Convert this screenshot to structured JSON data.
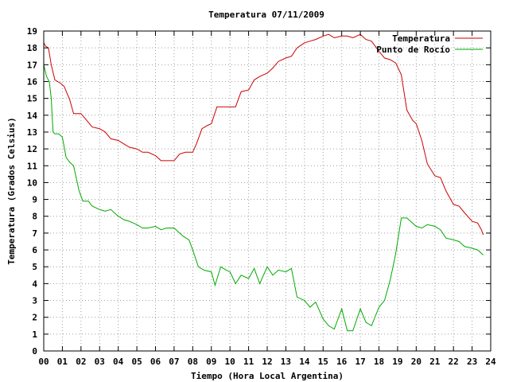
{
  "chart_data": {
    "type": "line",
    "title": "Temperatura 07/11/2009",
    "xlabel": "Tiempo (Hora Local Argentina)",
    "ylabel": "Temperatura (Grados Celsius)",
    "xlim": [
      0,
      24
    ],
    "ylim": [
      0,
      19
    ],
    "x_ticks": [
      "00",
      "01",
      "02",
      "03",
      "04",
      "05",
      "06",
      "07",
      "08",
      "09",
      "10",
      "11",
      "12",
      "13",
      "14",
      "15",
      "16",
      "17",
      "18",
      "19",
      "20",
      "21",
      "22",
      "23",
      "24"
    ],
    "y_ticks": [
      0,
      1,
      2,
      3,
      4,
      5,
      6,
      7,
      8,
      9,
      10,
      11,
      12,
      13,
      14,
      15,
      16,
      17,
      18,
      19
    ],
    "grid": true,
    "legend": "top-right",
    "series": [
      {
        "name": "Temperatura",
        "color": "#cc0000",
        "x": [
          0,
          0.1,
          0.25,
          0.4,
          0.6,
          0.9,
          1.1,
          1.4,
          1.6,
          2.0,
          2.3,
          2.6,
          3.0,
          3.3,
          3.6,
          4.0,
          4.3,
          4.6,
          5.0,
          5.3,
          5.6,
          6.0,
          6.3,
          6.6,
          7.0,
          7.3,
          7.6,
          8.0,
          8.2,
          8.5,
          8.8,
          9.0,
          9.3,
          9.6,
          10.0,
          10.3,
          10.6,
          11.0,
          11.3,
          11.6,
          12.0,
          12.3,
          12.6,
          13.0,
          13.3,
          13.6,
          14.0,
          14.3,
          14.6,
          15.0,
          15.3,
          15.6,
          16.0,
          16.3,
          16.6,
          17.0,
          17.3,
          17.6,
          18.0,
          18.3,
          18.6,
          18.9,
          19.2,
          19.5,
          19.8,
          20.0,
          20.3,
          20.6,
          21.0,
          21.3,
          21.6,
          22.0,
          22.3,
          22.6,
          23.0,
          23.3,
          23.5,
          23.6
        ],
        "values": [
          18.3,
          18.1,
          18.0,
          17.0,
          16.1,
          15.9,
          15.7,
          14.9,
          14.1,
          14.1,
          13.7,
          13.3,
          13.2,
          13.0,
          12.6,
          12.5,
          12.3,
          12.1,
          12.0,
          11.8,
          11.8,
          11.6,
          11.3,
          11.3,
          11.3,
          11.7,
          11.8,
          11.8,
          12.3,
          13.2,
          13.4,
          13.5,
          14.5,
          14.5,
          14.5,
          14.5,
          15.4,
          15.5,
          16.1,
          16.3,
          16.5,
          16.8,
          17.2,
          17.4,
          17.5,
          18.0,
          18.3,
          18.4,
          18.5,
          18.7,
          18.8,
          18.6,
          18.7,
          18.7,
          18.6,
          18.8,
          18.5,
          18.4,
          17.8,
          17.4,
          17.3,
          17.1,
          16.4,
          14.3,
          13.7,
          13.5,
          12.5,
          11.1,
          10.4,
          10.3,
          9.5,
          8.7,
          8.6,
          8.2,
          7.7,
          7.6,
          7.2,
          6.9
        ]
      },
      {
        "name": "Punto de Rocío",
        "color": "#00aa00",
        "x": [
          0,
          0.15,
          0.3,
          0.4,
          0.5,
          0.6,
          0.8,
          1.0,
          1.2,
          1.4,
          1.6,
          1.9,
          2.1,
          2.4,
          2.6,
          3.0,
          3.3,
          3.6,
          4.0,
          4.3,
          4.6,
          5.0,
          5.3,
          5.6,
          6.0,
          6.3,
          6.6,
          7.0,
          7.2,
          7.5,
          7.8,
          8.0,
          8.3,
          8.6,
          9.0,
          9.2,
          9.5,
          9.8,
          10.0,
          10.3,
          10.6,
          11.0,
          11.3,
          11.6,
          12.0,
          12.3,
          12.6,
          13.0,
          13.3,
          13.6,
          14.0,
          14.3,
          14.6,
          15.0,
          15.3,
          15.6,
          16.0,
          16.3,
          16.6,
          17.0,
          17.3,
          17.6,
          18.0,
          18.3,
          18.6,
          18.9,
          19.2,
          19.5,
          19.8,
          20.0,
          20.3,
          20.6,
          21.0,
          21.3,
          21.6,
          22.0,
          22.3,
          22.6,
          23.0,
          23.3,
          23.6
        ],
        "values": [
          17.0,
          16.3,
          16.0,
          15.0,
          13.0,
          12.9,
          12.9,
          12.7,
          11.5,
          11.2,
          11.0,
          9.5,
          8.9,
          8.9,
          8.6,
          8.4,
          8.3,
          8.4,
          8.0,
          7.8,
          7.7,
          7.5,
          7.3,
          7.3,
          7.4,
          7.2,
          7.3,
          7.3,
          7.1,
          6.8,
          6.6,
          6.0,
          5.0,
          4.8,
          4.7,
          3.9,
          5.0,
          4.8,
          4.7,
          4.0,
          4.5,
          4.3,
          4.9,
          4.0,
          5.0,
          4.5,
          4.8,
          4.7,
          4.9,
          3.2,
          3.0,
          2.6,
          2.9,
          1.9,
          1.5,
          1.3,
          2.5,
          1.2,
          1.2,
          2.5,
          1.7,
          1.5,
          2.6,
          3.0,
          4.2,
          5.8,
          7.9,
          7.9,
          7.6,
          7.4,
          7.3,
          7.5,
          7.4,
          7.2,
          6.7,
          6.6,
          6.5,
          6.2,
          6.1,
          6.0,
          5.7
        ]
      }
    ]
  }
}
